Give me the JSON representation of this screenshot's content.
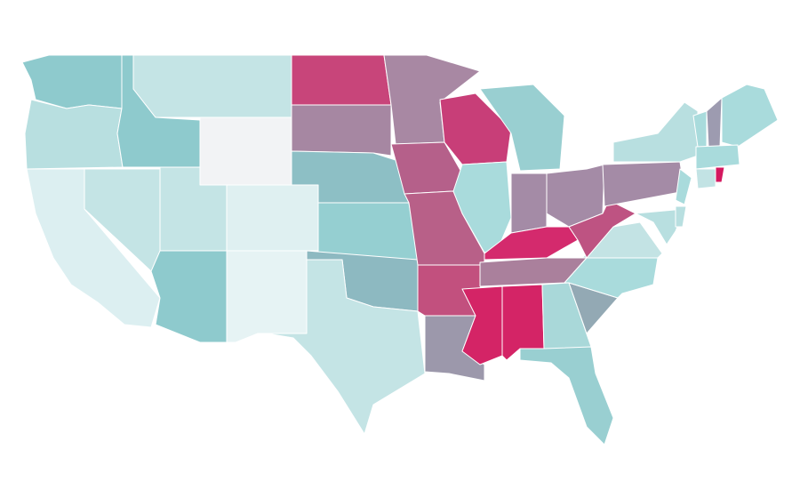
{
  "map": {
    "stroke": "#ffffff",
    "regions": [
      {
        "color": "#8ecacd"
      },
      {
        "color": "#b8dfe0"
      },
      {
        "color": "#dcefF1"
      },
      {
        "color": "#c4e4e5"
      },
      {
        "color": "#8ecacd"
      },
      {
        "color": "#c4e4e5"
      },
      {
        "color": "#f2f3f5"
      },
      {
        "color": "#c4e4e5"
      },
      {
        "color": "#dff0f1"
      },
      {
        "color": "#8ecacd"
      },
      {
        "color": "#e6f3f4"
      },
      {
        "color": "#c8457a"
      },
      {
        "color": "#a687a2"
      },
      {
        "color": "#8dbfc5"
      },
      {
        "color": "#95cfd1"
      },
      {
        "color": "#8db9c1"
      },
      {
        "color": "#c4e4e5"
      },
      {
        "color": "#a888a3"
      },
      {
        "color": "#b5608a"
      },
      {
        "color": "#b86088"
      },
      {
        "color": "#c2507e"
      },
      {
        "color": "#9c98ab"
      },
      {
        "color": "#c83e78"
      },
      {
        "color": "#a9dbdc"
      },
      {
        "color": "#99cfd1"
      },
      {
        "color": "#a48ba6"
      },
      {
        "color": "#a48ba6"
      },
      {
        "color": "#d42a6d"
      },
      {
        "color": "#aa809c"
      },
      {
        "color": "#d42466"
      },
      {
        "color": "#d42466"
      },
      {
        "color": "#a9d8d9"
      },
      {
        "color": "#99cfd1"
      },
      {
        "color": "#93a9b4"
      },
      {
        "color": "#a9dbdc"
      },
      {
        "color": "#c3e3e4"
      },
      {
        "color": "#be5382"
      },
      {
        "color": "#a48ba6"
      },
      {
        "color": "#b8dfe0"
      },
      {
        "color": "#a9dbdc"
      },
      {
        "color": "#b8dfe0"
      },
      {
        "color": "#b8dfe0"
      },
      {
        "color": "#a9dbdc"
      },
      {
        "color": "#9d9bb0"
      },
      {
        "color": "#a9dbdc"
      },
      {
        "color": "#a9dbdc"
      },
      {
        "color": "#c2e3e4"
      },
      {
        "color": "#d4185f"
      }
    ]
  }
}
